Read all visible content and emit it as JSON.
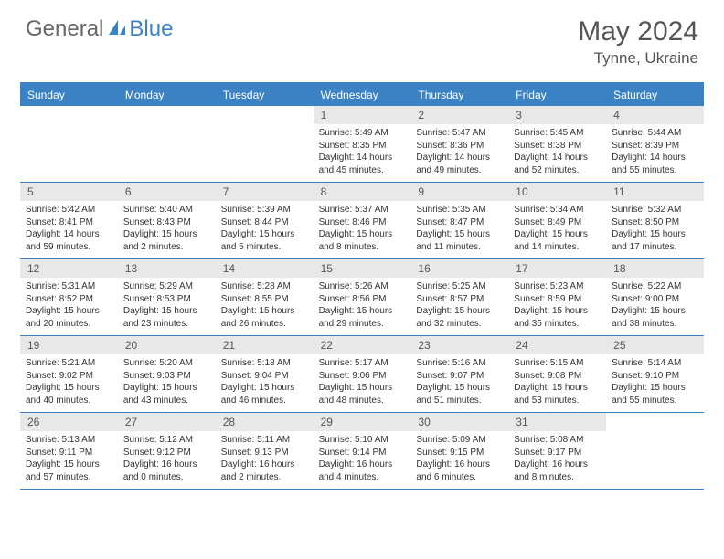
{
  "logo": {
    "part1": "General",
    "part2": "Blue"
  },
  "title": "May 2024",
  "location": "Tynne, Ukraine",
  "colors": {
    "accent": "#3b82c4",
    "header_text": "#555555",
    "daynum_bg": "#e8e8e8",
    "body_text": "#333333"
  },
  "day_names": [
    "Sunday",
    "Monday",
    "Tuesday",
    "Wednesday",
    "Thursday",
    "Friday",
    "Saturday"
  ],
  "weeks": [
    [
      {
        "n": "",
        "sr": "",
        "ss": "",
        "dl": ""
      },
      {
        "n": "",
        "sr": "",
        "ss": "",
        "dl": ""
      },
      {
        "n": "",
        "sr": "",
        "ss": "",
        "dl": ""
      },
      {
        "n": "1",
        "sr": "Sunrise: 5:49 AM",
        "ss": "Sunset: 8:35 PM",
        "dl": "Daylight: 14 hours and 45 minutes."
      },
      {
        "n": "2",
        "sr": "Sunrise: 5:47 AM",
        "ss": "Sunset: 8:36 PM",
        "dl": "Daylight: 14 hours and 49 minutes."
      },
      {
        "n": "3",
        "sr": "Sunrise: 5:45 AM",
        "ss": "Sunset: 8:38 PM",
        "dl": "Daylight: 14 hours and 52 minutes."
      },
      {
        "n": "4",
        "sr": "Sunrise: 5:44 AM",
        "ss": "Sunset: 8:39 PM",
        "dl": "Daylight: 14 hours and 55 minutes."
      }
    ],
    [
      {
        "n": "5",
        "sr": "Sunrise: 5:42 AM",
        "ss": "Sunset: 8:41 PM",
        "dl": "Daylight: 14 hours and 59 minutes."
      },
      {
        "n": "6",
        "sr": "Sunrise: 5:40 AM",
        "ss": "Sunset: 8:43 PM",
        "dl": "Daylight: 15 hours and 2 minutes."
      },
      {
        "n": "7",
        "sr": "Sunrise: 5:39 AM",
        "ss": "Sunset: 8:44 PM",
        "dl": "Daylight: 15 hours and 5 minutes."
      },
      {
        "n": "8",
        "sr": "Sunrise: 5:37 AM",
        "ss": "Sunset: 8:46 PM",
        "dl": "Daylight: 15 hours and 8 minutes."
      },
      {
        "n": "9",
        "sr": "Sunrise: 5:35 AM",
        "ss": "Sunset: 8:47 PM",
        "dl": "Daylight: 15 hours and 11 minutes."
      },
      {
        "n": "10",
        "sr": "Sunrise: 5:34 AM",
        "ss": "Sunset: 8:49 PM",
        "dl": "Daylight: 15 hours and 14 minutes."
      },
      {
        "n": "11",
        "sr": "Sunrise: 5:32 AM",
        "ss": "Sunset: 8:50 PM",
        "dl": "Daylight: 15 hours and 17 minutes."
      }
    ],
    [
      {
        "n": "12",
        "sr": "Sunrise: 5:31 AM",
        "ss": "Sunset: 8:52 PM",
        "dl": "Daylight: 15 hours and 20 minutes."
      },
      {
        "n": "13",
        "sr": "Sunrise: 5:29 AM",
        "ss": "Sunset: 8:53 PM",
        "dl": "Daylight: 15 hours and 23 minutes."
      },
      {
        "n": "14",
        "sr": "Sunrise: 5:28 AM",
        "ss": "Sunset: 8:55 PM",
        "dl": "Daylight: 15 hours and 26 minutes."
      },
      {
        "n": "15",
        "sr": "Sunrise: 5:26 AM",
        "ss": "Sunset: 8:56 PM",
        "dl": "Daylight: 15 hours and 29 minutes."
      },
      {
        "n": "16",
        "sr": "Sunrise: 5:25 AM",
        "ss": "Sunset: 8:57 PM",
        "dl": "Daylight: 15 hours and 32 minutes."
      },
      {
        "n": "17",
        "sr": "Sunrise: 5:23 AM",
        "ss": "Sunset: 8:59 PM",
        "dl": "Daylight: 15 hours and 35 minutes."
      },
      {
        "n": "18",
        "sr": "Sunrise: 5:22 AM",
        "ss": "Sunset: 9:00 PM",
        "dl": "Daylight: 15 hours and 38 minutes."
      }
    ],
    [
      {
        "n": "19",
        "sr": "Sunrise: 5:21 AM",
        "ss": "Sunset: 9:02 PM",
        "dl": "Daylight: 15 hours and 40 minutes."
      },
      {
        "n": "20",
        "sr": "Sunrise: 5:20 AM",
        "ss": "Sunset: 9:03 PM",
        "dl": "Daylight: 15 hours and 43 minutes."
      },
      {
        "n": "21",
        "sr": "Sunrise: 5:18 AM",
        "ss": "Sunset: 9:04 PM",
        "dl": "Daylight: 15 hours and 46 minutes."
      },
      {
        "n": "22",
        "sr": "Sunrise: 5:17 AM",
        "ss": "Sunset: 9:06 PM",
        "dl": "Daylight: 15 hours and 48 minutes."
      },
      {
        "n": "23",
        "sr": "Sunrise: 5:16 AM",
        "ss": "Sunset: 9:07 PM",
        "dl": "Daylight: 15 hours and 51 minutes."
      },
      {
        "n": "24",
        "sr": "Sunrise: 5:15 AM",
        "ss": "Sunset: 9:08 PM",
        "dl": "Daylight: 15 hours and 53 minutes."
      },
      {
        "n": "25",
        "sr": "Sunrise: 5:14 AM",
        "ss": "Sunset: 9:10 PM",
        "dl": "Daylight: 15 hours and 55 minutes."
      }
    ],
    [
      {
        "n": "26",
        "sr": "Sunrise: 5:13 AM",
        "ss": "Sunset: 9:11 PM",
        "dl": "Daylight: 15 hours and 57 minutes."
      },
      {
        "n": "27",
        "sr": "Sunrise: 5:12 AM",
        "ss": "Sunset: 9:12 PM",
        "dl": "Daylight: 16 hours and 0 minutes."
      },
      {
        "n": "28",
        "sr": "Sunrise: 5:11 AM",
        "ss": "Sunset: 9:13 PM",
        "dl": "Daylight: 16 hours and 2 minutes."
      },
      {
        "n": "29",
        "sr": "Sunrise: 5:10 AM",
        "ss": "Sunset: 9:14 PM",
        "dl": "Daylight: 16 hours and 4 minutes."
      },
      {
        "n": "30",
        "sr": "Sunrise: 5:09 AM",
        "ss": "Sunset: 9:15 PM",
        "dl": "Daylight: 16 hours and 6 minutes."
      },
      {
        "n": "31",
        "sr": "Sunrise: 5:08 AM",
        "ss": "Sunset: 9:17 PM",
        "dl": "Daylight: 16 hours and 8 minutes."
      },
      {
        "n": "",
        "sr": "",
        "ss": "",
        "dl": ""
      }
    ]
  ]
}
